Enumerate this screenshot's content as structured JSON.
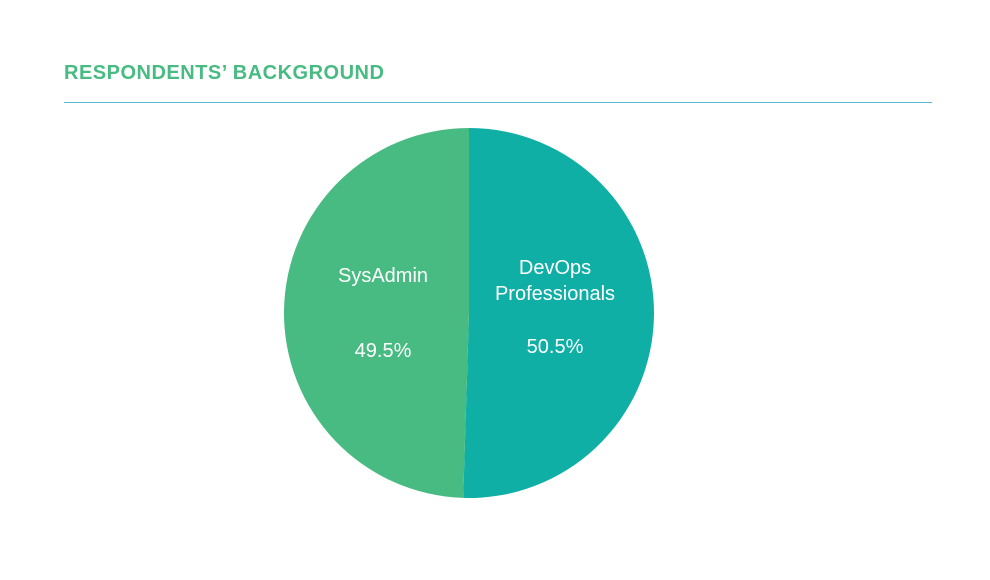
{
  "chart_data": {
    "type": "pie",
    "title": "RESPONDENTS’ BACKGROUND",
    "slices": [
      {
        "label": [
          "DevOps",
          "Professionals"
        ],
        "value": 50.5,
        "value_label": "50.5%",
        "color": "#10afa5"
      },
      {
        "label": [
          "SysAdmin"
        ],
        "value": 49.5,
        "value_label": "49.5%",
        "color": "#48bb82"
      }
    ],
    "start_angle_deg": 0,
    "direction": "clockwise",
    "legend": "none"
  },
  "colors": {
    "title": "#48bb82",
    "rule": "#5bb8cf",
    "label_text": "#ffffff"
  }
}
